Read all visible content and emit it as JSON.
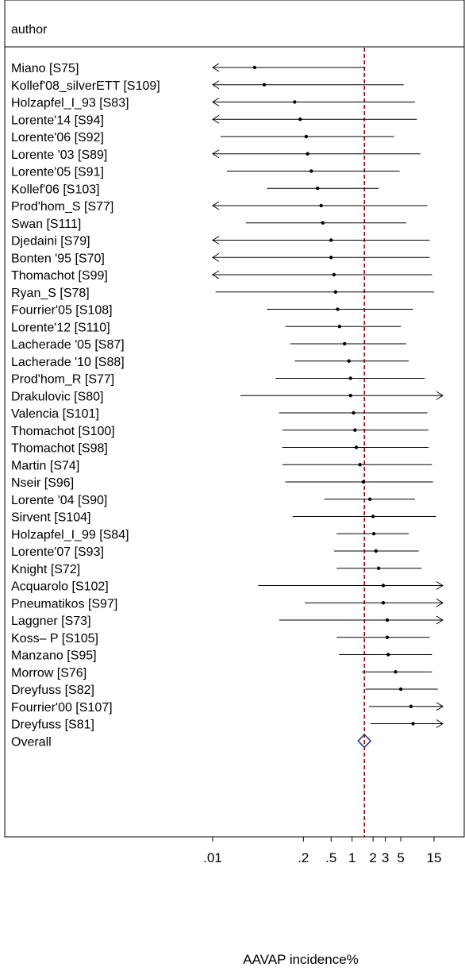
{
  "chart_data": {
    "type": "forest",
    "column_header": "author",
    "xlabel": "AAVAP incidence%",
    "xscale": "log",
    "xlim": [
      0.01,
      20
    ],
    "x_ticks": [
      {
        "value": 0.01,
        "label": ".01"
      },
      {
        "value": 0.2,
        "label": ".2"
      },
      {
        "value": 0.5,
        "label": ".5"
      },
      {
        "value": 1,
        "label": "1"
      },
      {
        "value": 2,
        "label": "2"
      },
      {
        "value": 3,
        "label": "3"
      },
      {
        "value": 5,
        "label": "5"
      },
      {
        "value": 15,
        "label": "15"
      }
    ],
    "reference_line": 1.5,
    "overall": {
      "label": "Overall",
      "estimate": 1.5,
      "lower": 1.22,
      "upper": 1.85
    },
    "studies": [
      {
        "label": "Miano [S75]",
        "estimate": 0.04,
        "lower": 0.01,
        "upper": 1.55,
        "arrow_left": true,
        "arrow_right": false
      },
      {
        "label": "Kollef'08_silverETT [S109]",
        "estimate": 0.055,
        "lower": 0.01,
        "upper": 5.5,
        "arrow_left": true,
        "arrow_right": false
      },
      {
        "label": "Holzapfel_I_93 [S83]",
        "estimate": 0.15,
        "lower": 0.01,
        "upper": 8.0,
        "arrow_left": true,
        "arrow_right": false
      },
      {
        "label": "Lorente'14 [S94]",
        "estimate": 0.18,
        "lower": 0.01,
        "upper": 8.5,
        "arrow_left": true,
        "arrow_right": false
      },
      {
        "label": "Lorente'06 [S92]",
        "estimate": 0.22,
        "lower": 0.013,
        "upper": 4.0,
        "arrow_left": false,
        "arrow_right": false
      },
      {
        "label": "Lorente '03 [S89]",
        "estimate": 0.23,
        "lower": 0.01,
        "upper": 9.5,
        "arrow_left": true,
        "arrow_right": false
      },
      {
        "label": "Lorente'05 [S91]",
        "estimate": 0.26,
        "lower": 0.016,
        "upper": 4.8,
        "arrow_left": false,
        "arrow_right": false
      },
      {
        "label": "Kollef'06 [S103]",
        "estimate": 0.32,
        "lower": 0.06,
        "upper": 2.4,
        "arrow_left": false,
        "arrow_right": false
      },
      {
        "label": "Prod'hom_S [S77]",
        "estimate": 0.36,
        "lower": 0.01,
        "upper": 12.0,
        "arrow_left": true,
        "arrow_right": false
      },
      {
        "label": "Swan [S111]",
        "estimate": 0.38,
        "lower": 0.03,
        "upper": 6.0,
        "arrow_left": false,
        "arrow_right": false
      },
      {
        "label": "Djedaini [S79]",
        "estimate": 0.5,
        "lower": 0.01,
        "upper": 13.0,
        "arrow_left": true,
        "arrow_right": false
      },
      {
        "label": "Bonten '95 [S70]",
        "estimate": 0.5,
        "lower": 0.01,
        "upper": 13.0,
        "arrow_left": true,
        "arrow_right": false
      },
      {
        "label": "Thomachot [S99]",
        "estimate": 0.55,
        "lower": 0.01,
        "upper": 14.0,
        "arrow_left": true,
        "arrow_right": false
      },
      {
        "label": "Ryan_S [S78]",
        "estimate": 0.58,
        "lower": 0.011,
        "upper": 15.0,
        "arrow_left": false,
        "arrow_right": false
      },
      {
        "label": "Fourrier'05 [S108]",
        "estimate": 0.62,
        "lower": 0.06,
        "upper": 7.5,
        "arrow_left": false,
        "arrow_right": false
      },
      {
        "label": "Lorente'12 [S110]",
        "estimate": 0.66,
        "lower": 0.11,
        "upper": 5.0,
        "arrow_left": false,
        "arrow_right": false
      },
      {
        "label": "Lacherade '05 [S87]",
        "estimate": 0.78,
        "lower": 0.13,
        "upper": 6.0,
        "arrow_left": false,
        "arrow_right": false
      },
      {
        "label": "Lacherade '10 [S88]",
        "estimate": 0.9,
        "lower": 0.15,
        "upper": 6.5,
        "arrow_left": false,
        "arrow_right": false
      },
      {
        "label": "Prod'hom_R [S77]",
        "estimate": 0.95,
        "lower": 0.08,
        "upper": 11.0,
        "arrow_left": false,
        "arrow_right": false
      },
      {
        "label": "Drakulovic [S80]",
        "estimate": 0.95,
        "lower": 0.025,
        "upper": 20.0,
        "arrow_left": false,
        "arrow_right": true
      },
      {
        "label": "Valencia [S101]",
        "estimate": 1.05,
        "lower": 0.09,
        "upper": 12.0,
        "arrow_left": false,
        "arrow_right": false
      },
      {
        "label": "Thomachot [S100]",
        "estimate": 1.1,
        "lower": 0.1,
        "upper": 12.5,
        "arrow_left": false,
        "arrow_right": false
      },
      {
        "label": "Thomachot [S98]",
        "estimate": 1.15,
        "lower": 0.1,
        "upper": 12.5,
        "arrow_left": false,
        "arrow_right": false
      },
      {
        "label": "Martin [S74]",
        "estimate": 1.3,
        "lower": 0.1,
        "upper": 14.0,
        "arrow_left": false,
        "arrow_right": false
      },
      {
        "label": "Nseir [S96]",
        "estimate": 1.45,
        "lower": 0.11,
        "upper": 14.5,
        "arrow_left": false,
        "arrow_right": false
      },
      {
        "label": "Lorente '04 [S90]",
        "estimate": 1.8,
        "lower": 0.4,
        "upper": 8.0,
        "arrow_left": false,
        "arrow_right": false
      },
      {
        "label": "Sirvent [S104]",
        "estimate": 2.0,
        "lower": 0.14,
        "upper": 16.0,
        "arrow_left": false,
        "arrow_right": false
      },
      {
        "label": "Holzapfel_I_99 [S84]",
        "estimate": 2.05,
        "lower": 0.6,
        "upper": 6.5,
        "arrow_left": false,
        "arrow_right": false
      },
      {
        "label": "Lorente'07 [S93]",
        "estimate": 2.2,
        "lower": 0.55,
        "upper": 9.0,
        "arrow_left": false,
        "arrow_right": false
      },
      {
        "label": "Knight [S72]",
        "estimate": 2.4,
        "lower": 0.6,
        "upper": 10.0,
        "arrow_left": false,
        "arrow_right": false
      },
      {
        "label": "Acquarolo [S102]",
        "estimate": 2.8,
        "lower": 0.045,
        "upper": 20.0,
        "arrow_left": false,
        "arrow_right": true
      },
      {
        "label": "Pneumatikos  [S97]",
        "estimate": 2.8,
        "lower": 0.21,
        "upper": 20.0,
        "arrow_left": false,
        "arrow_right": true
      },
      {
        "label": "Laggner [S73]",
        "estimate": 3.2,
        "lower": 0.09,
        "upper": 20.0,
        "arrow_left": false,
        "arrow_right": true
      },
      {
        "label": "Koss– P [S105]",
        "estimate": 3.2,
        "lower": 0.6,
        "upper": 13.0,
        "arrow_left": false,
        "arrow_right": false
      },
      {
        "label": "Manzano [S95]",
        "estimate": 3.3,
        "lower": 0.65,
        "upper": 14.0,
        "arrow_left": false,
        "arrow_right": false
      },
      {
        "label": "Morrow [S76]",
        "estimate": 4.2,
        "lower": 1.38,
        "upper": 14.0,
        "arrow_left": false,
        "arrow_right": false
      },
      {
        "label": "Dreyfuss [S82]",
        "estimate": 5.0,
        "lower": 1.55,
        "upper": 17.0,
        "arrow_left": false,
        "arrow_right": false
      },
      {
        "label": "Fourrier'00 [S107]",
        "estimate": 7.0,
        "lower": 1.75,
        "upper": 20.0,
        "arrow_left": false,
        "arrow_right": true
      },
      {
        "label": "Dreyfuss [S81]",
        "estimate": 7.5,
        "lower": 1.85,
        "upper": 20.0,
        "arrow_left": false,
        "arrow_right": true
      }
    ]
  }
}
